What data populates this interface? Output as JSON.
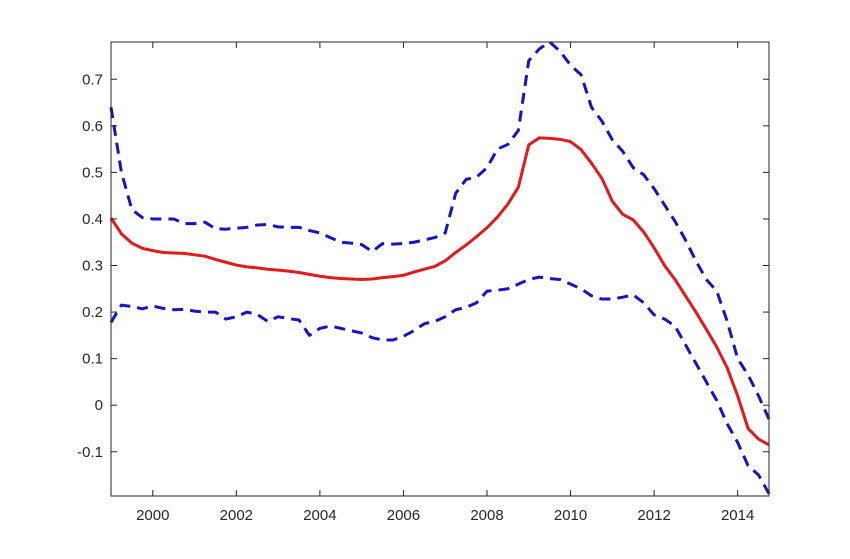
{
  "chart_data": {
    "type": "line",
    "title": "",
    "xlabel": "",
    "ylabel": "",
    "xlim": [
      1999,
      2014.75
    ],
    "ylim": [
      -0.195,
      0.78
    ],
    "x_ticks": [
      2000,
      2002,
      2004,
      2006,
      2008,
      2010,
      2012,
      2014
    ],
    "x_tick_labels": [
      "2000",
      "2002",
      "2004",
      "2006",
      "2008",
      "2010",
      "2012",
      "2014"
    ],
    "y_ticks": [
      -0.1,
      0,
      0.1,
      0.2,
      0.3,
      0.4,
      0.5,
      0.6,
      0.7
    ],
    "y_tick_labels": [
      "-0.1",
      "0",
      "0.1",
      "0.2",
      "0.3",
      "0.4",
      "0.5",
      "0.6",
      "0.7"
    ],
    "grid": false,
    "legend": "none",
    "series": [
      {
        "color": "#e31a1c",
        "style": "solid",
        "x": [
          1999,
          1999.25,
          1999.5,
          1999.75,
          2000,
          2000.25,
          2000.5,
          2000.75,
          2001,
          2001.25,
          2001.5,
          2001.75,
          2002,
          2002.25,
          2002.5,
          2002.75,
          2003,
          2003.25,
          2003.5,
          2003.75,
          2004,
          2004.25,
          2004.5,
          2004.75,
          2005,
          2005.25,
          2005.5,
          2005.75,
          2006,
          2006.25,
          2006.5,
          2006.75,
          2007,
          2007.25,
          2007.5,
          2007.75,
          2008,
          2008.25,
          2008.5,
          2008.75,
          2009,
          2009.25,
          2009.5,
          2009.75,
          2010,
          2010.25,
          2010.5,
          2010.75,
          2011,
          2011.25,
          2011.5,
          2011.75,
          2012,
          2012.25,
          2012.5,
          2012.75,
          2013,
          2013.25,
          2013.5,
          2013.75,
          2014,
          2014.25,
          2014.5,
          2014.75
        ],
        "values": [
          0.402,
          0.368,
          0.348,
          0.337,
          0.332,
          0.328,
          0.327,
          0.326,
          0.323,
          0.32,
          0.313,
          0.307,
          0.301,
          0.297,
          0.295,
          0.292,
          0.29,
          0.288,
          0.285,
          0.281,
          0.277,
          0.274,
          0.272,
          0.271,
          0.27,
          0.271,
          0.274,
          0.276,
          0.279,
          0.286,
          0.292,
          0.298,
          0.31,
          0.328,
          0.344,
          0.362,
          0.381,
          0.404,
          0.432,
          0.468,
          0.559,
          0.574,
          0.573,
          0.571,
          0.566,
          0.549,
          0.52,
          0.487,
          0.438,
          0.41,
          0.398,
          0.372,
          0.338,
          0.3,
          0.27,
          0.235,
          0.2,
          0.163,
          0.125,
          0.08,
          0.02,
          -0.05,
          -0.073,
          -0.085
        ]
      },
      {
        "color": "#1414c8",
        "style": "dashed",
        "x": [
          1999,
          1999.25,
          1999.5,
          1999.75,
          2000,
          2000.25,
          2000.5,
          2000.75,
          2001,
          2001.25,
          2001.5,
          2001.75,
          2002,
          2002.25,
          2002.5,
          2002.75,
          2003,
          2003.25,
          2003.5,
          2003.75,
          2004,
          2004.25,
          2004.5,
          2004.75,
          2005,
          2005.25,
          2005.5,
          2005.75,
          2006,
          2006.25,
          2006.5,
          2006.75,
          2007,
          2007.25,
          2007.5,
          2007.75,
          2008,
          2008.25,
          2008.5,
          2008.75,
          2009,
          2009.25,
          2009.5,
          2009.75,
          2010,
          2010.25,
          2010.5,
          2010.75,
          2011,
          2011.25,
          2011.5,
          2011.75,
          2012,
          2012.25,
          2012.5,
          2012.75,
          2013,
          2013.25,
          2013.5,
          2013.75,
          2014,
          2014.25,
          2014.5,
          2014.75
        ],
        "values": [
          0.64,
          0.5,
          0.42,
          0.403,
          0.4,
          0.4,
          0.4,
          0.39,
          0.39,
          0.393,
          0.379,
          0.378,
          0.38,
          0.382,
          0.387,
          0.388,
          0.383,
          0.382,
          0.382,
          0.375,
          0.37,
          0.36,
          0.35,
          0.348,
          0.345,
          0.33,
          0.347,
          0.346,
          0.347,
          0.35,
          0.355,
          0.36,
          0.37,
          0.455,
          0.485,
          0.49,
          0.51,
          0.55,
          0.56,
          0.59,
          0.74,
          0.765,
          0.78,
          0.76,
          0.73,
          0.71,
          0.64,
          0.61,
          0.57,
          0.545,
          0.51,
          0.495,
          0.465,
          0.43,
          0.395,
          0.355,
          0.31,
          0.27,
          0.245,
          0.18,
          0.1,
          0.065,
          0.02,
          -0.03
        ]
      },
      {
        "color": "#1414c8",
        "style": "dashed",
        "x": [
          1999,
          1999.25,
          1999.5,
          1999.75,
          2000,
          2000.25,
          2000.5,
          2000.75,
          2001,
          2001.25,
          2001.5,
          2001.75,
          2002,
          2002.25,
          2002.5,
          2002.75,
          2003,
          2003.25,
          2003.5,
          2003.75,
          2004,
          2004.25,
          2004.5,
          2004.75,
          2005,
          2005.25,
          2005.5,
          2005.75,
          2006,
          2006.25,
          2006.5,
          2006.75,
          2007,
          2007.25,
          2007.5,
          2007.75,
          2008,
          2008.25,
          2008.5,
          2008.75,
          2009,
          2009.25,
          2009.5,
          2009.75,
          2010,
          2010.25,
          2010.5,
          2010.75,
          2011,
          2011.25,
          2011.5,
          2011.75,
          2012,
          2012.25,
          2012.5,
          2012.75,
          2013,
          2013.25,
          2013.5,
          2013.75,
          2014,
          2014.25,
          2014.5,
          2014.75
        ],
        "values": [
          0.178,
          0.215,
          0.212,
          0.207,
          0.213,
          0.208,
          0.205,
          0.206,
          0.202,
          0.2,
          0.2,
          0.185,
          0.19,
          0.2,
          0.195,
          0.18,
          0.19,
          0.186,
          0.183,
          0.15,
          0.165,
          0.17,
          0.165,
          0.16,
          0.155,
          0.145,
          0.14,
          0.14,
          0.148,
          0.16,
          0.175,
          0.18,
          0.19,
          0.205,
          0.21,
          0.22,
          0.245,
          0.247,
          0.25,
          0.26,
          0.27,
          0.275,
          0.272,
          0.27,
          0.26,
          0.25,
          0.235,
          0.228,
          0.228,
          0.232,
          0.237,
          0.22,
          0.194,
          0.185,
          0.17,
          0.13,
          0.09,
          0.05,
          0.01,
          -0.04,
          -0.08,
          -0.13,
          -0.15,
          -0.19
        ]
      }
    ]
  }
}
